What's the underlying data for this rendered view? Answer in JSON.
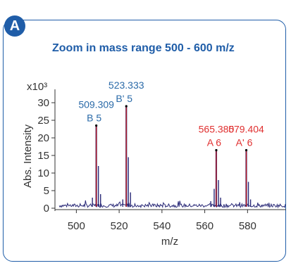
{
  "panel": {
    "badge": "A",
    "title": "Zoom in mass range 500 - 600 m/z"
  },
  "colors": {
    "accent": "#1f5da8",
    "red": "#e03030",
    "spectrum": "#2a2a78",
    "peak": "#cc2020"
  },
  "chart_data": {
    "type": "line",
    "title": "Zoom in mass range 500 - 600 m/z",
    "xlabel": "m/z",
    "ylabel": "Abs. Intensity",
    "yscale_label": "x10³",
    "xlim": [
      490,
      598
    ],
    "ylim": [
      0,
      33
    ],
    "xticks": [
      500,
      520,
      540,
      560,
      580
    ],
    "yticks": [
      0,
      5,
      10,
      15,
      20,
      25,
      30
    ],
    "peaks": [
      {
        "x": 509.309,
        "y": 23.5,
        "mz": "509.309",
        "name": "B 5",
        "color": "#2a6aa8"
      },
      {
        "x": 523.333,
        "y": 29.0,
        "mz": "523.333",
        "name": "B' 5",
        "color": "#2a6aa8"
      },
      {
        "x": 565.38,
        "y": 16.5,
        "mz": "565.380",
        "name": "A 6",
        "color": "#e03030"
      },
      {
        "x": 579.404,
        "y": 16.5,
        "mz": "579.404",
        "name": "A' 6",
        "color": "#e03030"
      }
    ],
    "isotopes": [
      {
        "x": 510.3,
        "y": 12.0
      },
      {
        "x": 511.3,
        "y": 4.0
      },
      {
        "x": 524.3,
        "y": 14.5
      },
      {
        "x": 525.3,
        "y": 4.5
      },
      {
        "x": 564.4,
        "y": 5.5
      },
      {
        "x": 566.4,
        "y": 8.0
      },
      {
        "x": 567.4,
        "y": 3.0
      },
      {
        "x": 580.4,
        "y": 7.5
      },
      {
        "x": 581.4,
        "y": 2.5
      },
      {
        "x": 507.5,
        "y": 3.0
      },
      {
        "x": 521.7,
        "y": 2.5
      },
      {
        "x": 562.8,
        "y": 2.0
      }
    ]
  }
}
